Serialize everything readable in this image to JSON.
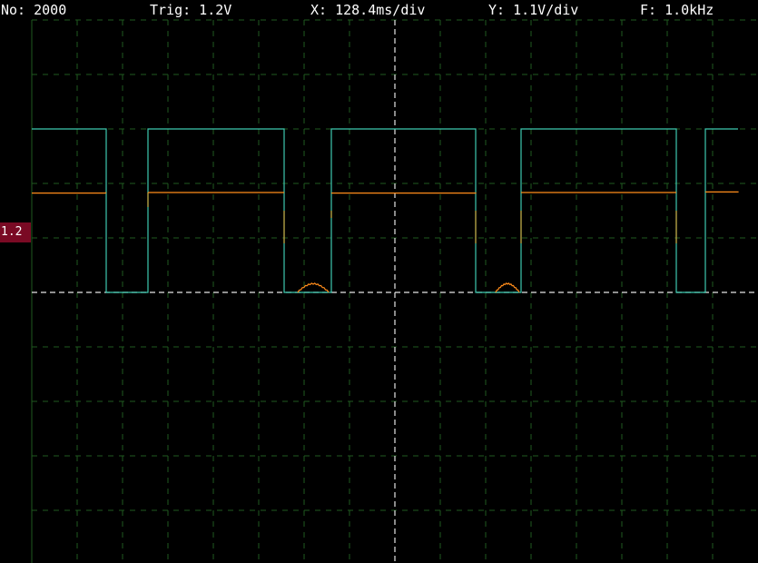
{
  "status": {
    "sample_count": "No: 2000",
    "trigger": "Trig: 1.2V",
    "timebase": "X: 128.4ms/div",
    "vertical": "Y: 1.1V/div",
    "frequency": "F: 1.0kHz"
  },
  "trigger_marker": {
    "label": "1.2"
  },
  "colors": {
    "background": "#000000",
    "grid": "#1f5a1f",
    "center_line": "#e6e6e6",
    "channel1": "#3ec9b0",
    "channel2": "#ff8c1a",
    "trigger_marker": "#7a0a24"
  },
  "channels": [
    {
      "id": "ch1",
      "color": "#3ec9b0",
      "transitions_x": [
        117,
        163,
        313,
        365,
        524,
        574,
        745,
        777
      ],
      "high_level_y": 142,
      "low_level_y": 322
    },
    {
      "id": "ch2",
      "color": "#ff8c1a",
      "transitions_x": [
        117,
        163,
        313,
        365,
        524,
        574,
        745,
        777
      ],
      "high_level_y": 212,
      "low_level_y": 322
    }
  ]
}
